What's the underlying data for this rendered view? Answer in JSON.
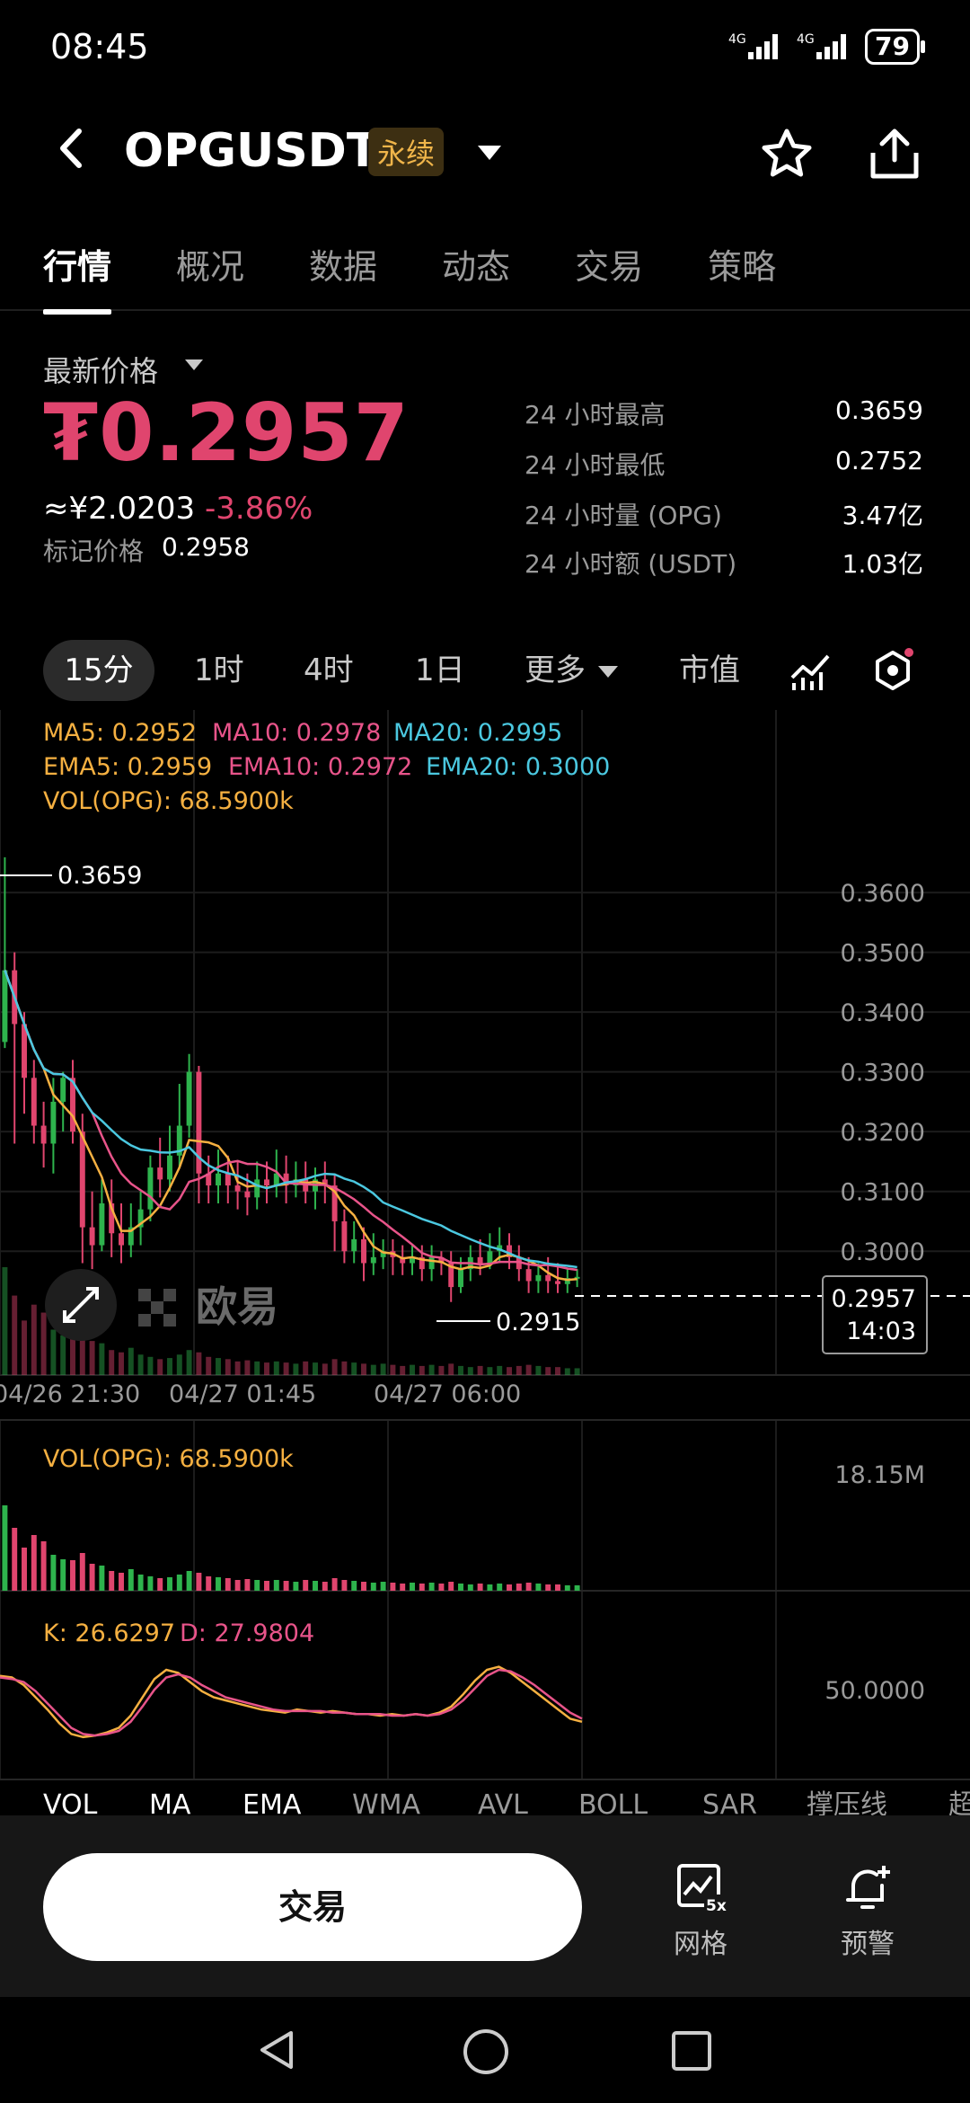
{
  "status": {
    "time": "08:45",
    "battery": "79",
    "net1": "4G",
    "net2": "4G"
  },
  "header": {
    "symbol": "OPGUSDT",
    "badge": "永续"
  },
  "tabs": [
    "行情",
    "概况",
    "数据",
    "动态",
    "交易",
    "策略"
  ],
  "price": {
    "label": "最新价格",
    "value": "₮0.2957",
    "cny": "≈¥2.0203",
    "change": "-3.86%",
    "mark_label": "标记价格",
    "mark_value": "0.2958"
  },
  "stats": [
    {
      "label": "24 小时最高",
      "value": "0.3659"
    },
    {
      "label": "24 小时最低",
      "value": "0.2752"
    },
    {
      "label": "24 小时量 (OPG)",
      "value": "3.47亿"
    },
    {
      "label": "24 小时额 (USDT)",
      "value": "1.03亿"
    }
  ],
  "timeframes": [
    "15分",
    "1时",
    "4时",
    "1日",
    "更多",
    "市值"
  ],
  "indicators": {
    "ma5": "MA5: 0.2952",
    "ma10": "MA10: 0.2978",
    "ma20": "MA20: 0.2995",
    "ema5": "EMA5: 0.2959",
    "ema10": "EMA10: 0.2972",
    "ema20": "EMA20: 0.3000",
    "vol": "VOL(OPG): 68.5900k"
  },
  "main_chart": {
    "high_label": "0.3659",
    "low_label": "0.2915",
    "current_price": "0.2957",
    "countdown": "14:03",
    "watermark": "欧易",
    "x_labels": [
      "04/26 21:30",
      "04/27 01:45",
      "04/27 06:00"
    ]
  },
  "vol_panel": {
    "label": "VOL(OPG): 68.5900k",
    "max": "18.15M"
  },
  "kd_panel": {
    "k": "K: 26.6297",
    "d": "D: 27.9804",
    "mid": "50.0000"
  },
  "indicator_tabs": [
    "VOL",
    "MA",
    "EMA",
    "WMA",
    "AVL",
    "BOLL",
    "SAR",
    "撑压线",
    "超"
  ],
  "bottom": {
    "trade": "交易",
    "grid": "网格",
    "alert": "预警"
  },
  "colors": {
    "up": "#2eb34d",
    "down": "#e0456e",
    "ma5": "#f5b041",
    "ma10": "#e8548a",
    "ma20": "#4bc8e0",
    "accent": "#f0b54a"
  },
  "chart_data": {
    "type": "candlestick",
    "y_ticks": [
      0.36,
      0.35,
      0.34,
      0.33,
      0.32,
      0.31,
      0.3
    ],
    "ylim": [
      0.2868,
      0.3725
    ],
    "high": 0.3659,
    "low": 0.2915,
    "last": 0.2957,
    "candles": [
      [
        0.335,
        0.347,
        0.3659,
        0.334
      ],
      [
        0.347,
        0.338,
        0.35,
        0.318
      ],
      [
        0.338,
        0.329,
        0.34,
        0.323
      ],
      [
        0.329,
        0.321,
        0.332,
        0.318
      ],
      [
        0.321,
        0.318,
        0.325,
        0.314
      ],
      [
        0.318,
        0.325,
        0.329,
        0.313
      ],
      [
        0.325,
        0.329,
        0.33,
        0.32
      ],
      [
        0.329,
        0.32,
        0.332,
        0.318
      ],
      [
        0.32,
        0.304,
        0.323,
        0.298
      ],
      [
        0.304,
        0.301,
        0.31,
        0.297
      ],
      [
        0.301,
        0.308,
        0.312,
        0.3
      ],
      [
        0.308,
        0.303,
        0.312,
        0.299
      ],
      [
        0.303,
        0.301,
        0.308,
        0.298
      ],
      [
        0.301,
        0.304,
        0.308,
        0.299
      ],
      [
        0.304,
        0.307,
        0.31,
        0.301
      ],
      [
        0.307,
        0.314,
        0.316,
        0.305
      ],
      [
        0.314,
        0.312,
        0.319,
        0.309
      ],
      [
        0.312,
        0.316,
        0.321,
        0.31
      ],
      [
        0.316,
        0.321,
        0.328,
        0.314
      ],
      [
        0.321,
        0.33,
        0.333,
        0.319
      ],
      [
        0.33,
        0.313,
        0.331,
        0.308
      ],
      [
        0.313,
        0.311,
        0.316,
        0.308
      ],
      [
        0.311,
        0.313,
        0.317,
        0.308
      ],
      [
        0.313,
        0.311,
        0.316,
        0.308
      ],
      [
        0.311,
        0.31,
        0.315,
        0.307
      ],
      [
        0.31,
        0.309,
        0.313,
        0.306
      ],
      [
        0.309,
        0.312,
        0.315,
        0.307
      ],
      [
        0.312,
        0.311,
        0.315,
        0.308
      ],
      [
        0.311,
        0.313,
        0.317,
        0.309
      ],
      [
        0.313,
        0.311,
        0.316,
        0.308
      ],
      [
        0.311,
        0.312,
        0.315,
        0.309
      ],
      [
        0.312,
        0.31,
        0.315,
        0.308
      ],
      [
        0.31,
        0.312,
        0.314,
        0.307
      ],
      [
        0.312,
        0.311,
        0.315,
        0.308
      ],
      [
        0.311,
        0.305,
        0.313,
        0.3
      ],
      [
        0.305,
        0.3,
        0.307,
        0.298
      ],
      [
        0.3,
        0.302,
        0.305,
        0.298
      ],
      [
        0.302,
        0.298,
        0.304,
        0.295
      ],
      [
        0.298,
        0.299,
        0.303,
        0.296
      ],
      [
        0.299,
        0.3,
        0.302,
        0.297
      ],
      [
        0.3,
        0.299,
        0.302,
        0.296
      ],
      [
        0.299,
        0.298,
        0.301,
        0.296
      ],
      [
        0.298,
        0.299,
        0.301,
        0.296
      ],
      [
        0.299,
        0.297,
        0.301,
        0.295
      ],
      [
        0.297,
        0.299,
        0.301,
        0.295
      ],
      [
        0.299,
        0.298,
        0.3,
        0.296
      ],
      [
        0.298,
        0.294,
        0.3,
        0.2915
      ],
      [
        0.294,
        0.297,
        0.299,
        0.293
      ],
      [
        0.297,
        0.299,
        0.301,
        0.295
      ],
      [
        0.299,
        0.298,
        0.302,
        0.296
      ],
      [
        0.298,
        0.3,
        0.303,
        0.297
      ],
      [
        0.3,
        0.301,
        0.304,
        0.298
      ],
      [
        0.301,
        0.299,
        0.303,
        0.297
      ],
      [
        0.299,
        0.297,
        0.301,
        0.295
      ],
      [
        0.297,
        0.295,
        0.299,
        0.293
      ],
      [
        0.295,
        0.296,
        0.298,
        0.293
      ],
      [
        0.296,
        0.295,
        0.299,
        0.293
      ],
      [
        0.295,
        0.2945,
        0.298,
        0.293
      ],
      [
        0.2945,
        0.2955,
        0.297,
        0.293
      ],
      [
        0.2955,
        0.2957,
        0.297,
        0.294
      ]
    ],
    "volume": [
      95,
      70,
      48,
      62,
      55,
      40,
      35,
      34,
      42,
      30,
      28,
      22,
      20,
      24,
      18,
      16,
      14,
      15,
      18,
      22,
      20,
      16,
      15,
      14,
      12,
      13,
      12,
      11,
      12,
      11,
      10,
      12,
      11,
      10,
      14,
      12,
      11,
      10,
      9,
      10,
      9,
      8,
      9,
      8,
      9,
      8,
      10,
      8,
      7,
      8,
      7,
      8,
      7,
      8,
      9,
      8,
      7,
      7,
      6,
      6
    ],
    "kd_k": [
      56,
      55,
      50,
      42,
      34,
      25,
      18,
      16,
      17,
      19,
      22,
      30,
      42,
      54,
      60,
      58,
      52,
      46,
      42,
      40,
      38,
      36,
      34,
      33,
      32,
      34,
      33,
      32,
      33,
      32,
      31,
      31,
      30,
      31,
      30,
      31,
      30,
      32,
      36,
      44,
      53,
      60,
      62,
      58,
      52,
      46,
      40,
      34,
      28,
      26
    ],
    "kd_d": [
      55,
      54,
      52,
      46,
      38,
      30,
      22,
      18,
      17,
      18,
      20,
      26,
      36,
      47,
      55,
      57,
      55,
      50,
      46,
      42,
      40,
      38,
      36,
      34,
      33,
      33,
      33,
      33,
      32,
      32,
      31,
      31,
      31,
      30,
      30,
      31,
      30,
      31,
      34,
      40,
      48,
      56,
      60,
      59,
      55,
      50,
      44,
      38,
      32,
      28
    ]
  }
}
